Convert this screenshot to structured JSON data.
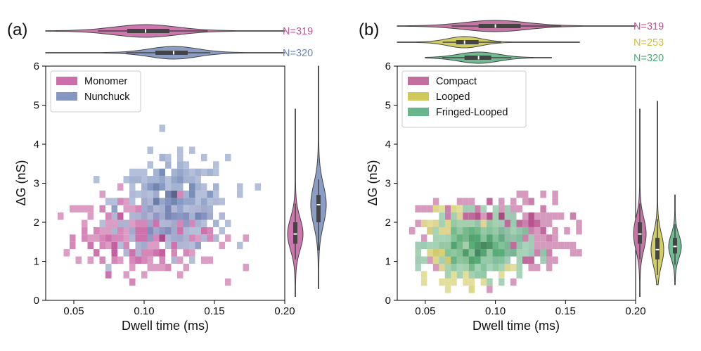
{
  "chart_data": [
    {
      "panel_label": "(a)",
      "type": "heatmap",
      "xlabel": "Dwell time (ms)",
      "ylabel": "ΔG (nS)",
      "xlim": [
        0.03,
        0.2
      ],
      "ylim": [
        0,
        6
      ],
      "x_ticks": [
        "0.05",
        "0.10",
        "0.15",
        "0.20"
      ],
      "y_ticks": [
        "0",
        "1",
        "2",
        "3",
        "4",
        "5",
        "6"
      ],
      "legend": {
        "placement": "top-left",
        "entries": [
          "Monomer",
          "Nunchuck"
        ]
      },
      "series": [
        {
          "name": "Monomer",
          "color": "#c2549a",
          "count": "N=319",
          "dwell_median": 0.101,
          "dwell_iqr": [
            0.088,
            0.118
          ],
          "dwell_range": [
            0.03,
            0.2
          ],
          "dg_median": 1.7,
          "dg_iqr": [
            1.45,
            2.0
          ],
          "dg_range": [
            0.1,
            4.9
          ]
        },
        {
          "name": "Nunchuck",
          "color": "#6f85b7",
          "count": "N=320",
          "dwell_median": 0.121,
          "dwell_iqr": [
            0.108,
            0.131
          ],
          "dwell_range": [
            0.03,
            0.2
          ],
          "dg_median": 2.45,
          "dg_iqr": [
            2.0,
            2.7
          ],
          "dg_range": [
            0.3,
            6.0
          ]
        }
      ]
    },
    {
      "panel_label": "(b)",
      "type": "heatmap",
      "xlabel": "Dwell time (ms)",
      "ylabel": "ΔG (nS)",
      "xlim": [
        0.03,
        0.2
      ],
      "ylim": [
        0,
        6
      ],
      "x_ticks": [
        "0.05",
        "0.10",
        "0.15",
        "0.20"
      ],
      "y_ticks": [
        "0",
        "1",
        "2",
        "3",
        "4",
        "5",
        "6"
      ],
      "legend": {
        "placement": "top-left",
        "entries": [
          "Compact",
          "Looped",
          "Fringed-Looped"
        ]
      },
      "series": [
        {
          "name": "Compact",
          "color": "#b8548f",
          "count": "N=319",
          "dwell_median": 0.1,
          "dwell_iqr": [
            0.088,
            0.118
          ],
          "dwell_range": [
            0.03,
            0.2
          ],
          "dg_median": 1.7,
          "dg_iqr": [
            1.45,
            2.0
          ],
          "dg_range": [
            0.1,
            4.9
          ]
        },
        {
          "name": "Looped",
          "color": "#c7c03e",
          "count": "N=253",
          "dwell_median": 0.078,
          "dwell_iqr": [
            0.072,
            0.088
          ],
          "dwell_range": [
            0.03,
            0.16
          ],
          "dg_median": 1.3,
          "dg_iqr": [
            1.05,
            1.6
          ],
          "dg_range": [
            0.4,
            5.1
          ]
        },
        {
          "name": "Fringed-Looped",
          "color": "#4daa78",
          "count": "N=320",
          "dwell_median": 0.088,
          "dwell_iqr": [
            0.078,
            0.097
          ],
          "dwell_range": [
            0.05,
            0.14
          ],
          "dg_median": 1.38,
          "dg_iqr": [
            1.2,
            1.6
          ],
          "dg_range": [
            0.4,
            2.7
          ]
        }
      ]
    }
  ]
}
